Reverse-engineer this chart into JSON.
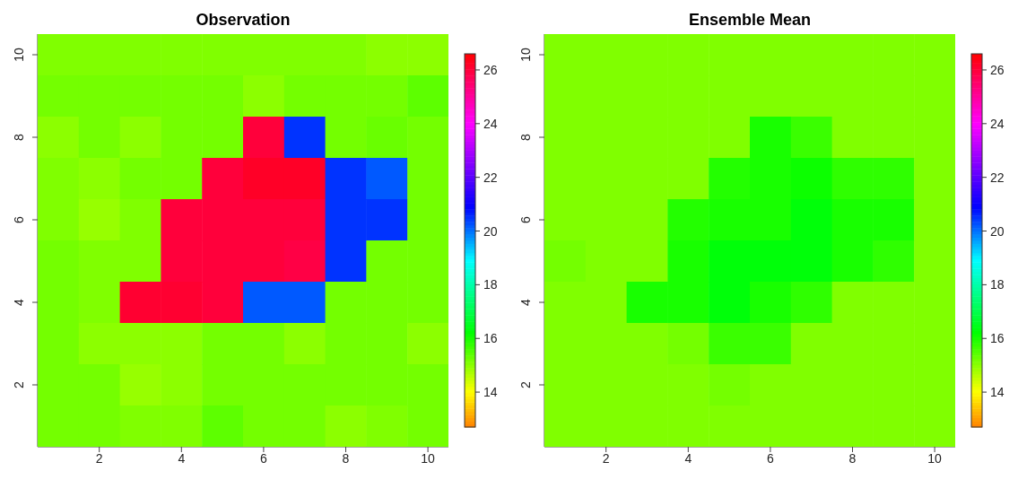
{
  "chart_data": [
    {
      "type": "heatmap",
      "title": "Observation",
      "categories": [
        null,
        "2",
        null,
        "4",
        null,
        "6",
        null,
        "8",
        null,
        "10"
      ],
      "y_categories": [
        "10",
        null,
        "8",
        null,
        "6",
        null,
        "4",
        null,
        "2",
        null
      ],
      "clim": [
        12.7,
        26.6
      ],
      "cticks": [
        14,
        16,
        18,
        20,
        22,
        24,
        26
      ],
      "cells": [
        [
          15.1,
          15.1,
          15.1,
          15.1,
          15.1,
          15.1,
          15.1,
          15.1,
          15.0,
          15.0
        ],
        [
          15.2,
          15.2,
          15.2,
          15.2,
          15.2,
          15.0,
          15.2,
          15.2,
          15.2,
          15.4
        ],
        [
          15.0,
          15.2,
          15.0,
          15.2,
          15.2,
          26.0,
          20.5,
          15.2,
          15.3,
          15.2
        ],
        [
          15.1,
          15.0,
          15.2,
          15.2,
          26.0,
          26.2,
          26.2,
          20.5,
          20.2,
          15.2
        ],
        [
          15.1,
          14.9,
          15.1,
          26.0,
          26.0,
          26.0,
          26.0,
          20.5,
          20.5,
          15.2
        ],
        [
          15.2,
          15.1,
          15.1,
          26.0,
          26.0,
          26.0,
          25.9,
          20.5,
          15.2,
          15.2
        ],
        [
          15.2,
          15.1,
          26.1,
          26.1,
          26.0,
          20.2,
          20.2,
          15.2,
          15.2,
          15.2
        ],
        [
          15.2,
          15.0,
          15.0,
          15.0,
          15.2,
          15.2,
          15.0,
          15.2,
          15.2,
          15.0
        ],
        [
          15.2,
          15.2,
          14.9,
          15.0,
          15.2,
          15.2,
          15.2,
          15.2,
          15.2,
          15.2
        ],
        [
          15.2,
          15.2,
          15.1,
          15.1,
          15.4,
          15.2,
          15.2,
          15.0,
          15.1,
          15.2
        ]
      ]
    },
    {
      "type": "heatmap",
      "title": "Ensemble Mean",
      "categories": [
        null,
        "2",
        null,
        "4",
        null,
        "6",
        null,
        "8",
        null,
        "10"
      ],
      "y_categories": [
        "10",
        null,
        "8",
        null,
        "6",
        null,
        "4",
        null,
        "2",
        null
      ],
      "clim": [
        12.7,
        26.6
      ],
      "cticks": [
        14,
        16,
        18,
        20,
        22,
        24,
        26
      ],
      "cells": [
        [
          15.1,
          15.1,
          15.1,
          15.1,
          15.1,
          15.1,
          15.1,
          15.1,
          15.1,
          15.1
        ],
        [
          15.1,
          15.1,
          15.1,
          15.1,
          15.1,
          15.1,
          15.1,
          15.1,
          15.1,
          15.1
        ],
        [
          15.1,
          15.1,
          15.1,
          15.1,
          15.1,
          16.0,
          15.7,
          15.1,
          15.1,
          15.1
        ],
        [
          15.1,
          15.1,
          15.1,
          15.1,
          15.9,
          16.0,
          16.1,
          15.8,
          15.8,
          15.1
        ],
        [
          15.1,
          15.1,
          15.1,
          15.9,
          16.0,
          16.0,
          16.3,
          16.0,
          16.0,
          15.1
        ],
        [
          15.2,
          15.1,
          15.1,
          16.0,
          16.3,
          16.3,
          16.3,
          16.0,
          15.8,
          15.1
        ],
        [
          15.1,
          15.1,
          16.0,
          16.0,
          16.3,
          16.0,
          15.8,
          15.1,
          15.1,
          15.1
        ],
        [
          15.1,
          15.1,
          15.1,
          15.2,
          15.7,
          15.7,
          15.1,
          15.1,
          15.1,
          15.1
        ],
        [
          15.1,
          15.1,
          15.1,
          15.1,
          15.2,
          15.1,
          15.1,
          15.1,
          15.1,
          15.1
        ],
        [
          15.1,
          15.1,
          15.1,
          15.1,
          15.1,
          15.1,
          15.1,
          15.1,
          15.1,
          15.1
        ]
      ]
    }
  ]
}
